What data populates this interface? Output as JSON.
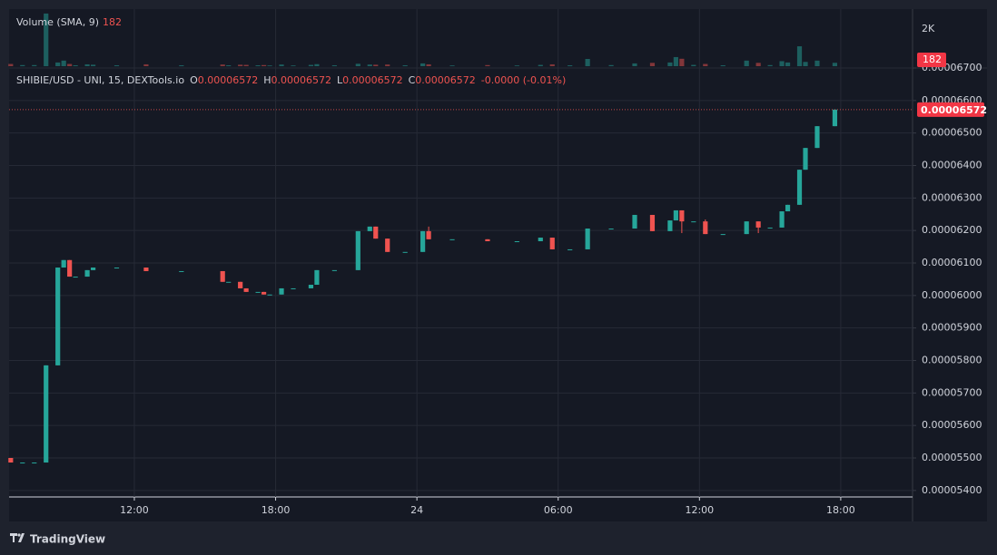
{
  "chart_data": {
    "type": "candlestick",
    "legend": {
      "title": "SHIBIE/USD - UNI, 15, DEXTools.io",
      "fields": [
        {
          "key": "O",
          "value": "0.00006572"
        },
        {
          "key": "H",
          "value": "0.00006572"
        },
        {
          "key": "L",
          "value": "0.00006572"
        },
        {
          "key": "C",
          "value": "0.00006572"
        }
      ],
      "change": "-0.0000 (-0.01%)"
    },
    "up_color": "#26a69a",
    "down_color": "#ef5350",
    "x": [
      6.75,
      7.25,
      7.75,
      8.25,
      8.75,
      9.0,
      9.25,
      9.5,
      10.0,
      10.25,
      11.25,
      12.5,
      14.0,
      15.75,
      16.0,
      16.5,
      16.75,
      17.25,
      17.5,
      17.75,
      18.25,
      18.75,
      19.5,
      19.75,
      20.5,
      21.5,
      22.0,
      22.25,
      22.75,
      23.5,
      24.25,
      24.5,
      25.5,
      27.0,
      28.25,
      29.25,
      29.75,
      30.5,
      31.25,
      32.25,
      33.25,
      34.0,
      34.75,
      35.0,
      35.25,
      35.75,
      36.25,
      37.0,
      38.0,
      38.5,
      39.0,
      39.5,
      39.75,
      40.25,
      40.5,
      41.0,
      41.75
    ],
    "open": [
      5.5e-05,
      5.486e-05,
      5.486e-05,
      5.486e-05,
      5.785e-05,
      6.086e-05,
      6.109e-05,
      6.058e-05,
      6.058e-05,
      6.078e-05,
      6.086e-05,
      6.086e-05,
      6.075e-05,
      6.075e-05,
      6.042e-05,
      6.042e-05,
      6.022e-05,
      6.011e-05,
      6.011e-05,
      6.003e-05,
      6.003e-05,
      6.022e-05,
      6.022e-05,
      6.033e-05,
      6.078e-05,
      6.078e-05,
      6.198e-05,
      6.212e-05,
      6.175e-05,
      6.134e-05,
      6.134e-05,
      6.198e-05,
      6.173e-05,
      6.173e-05,
      6.167e-05,
      6.167e-05,
      6.178e-05,
      6.142e-05,
      6.142e-05,
      6.206e-05,
      6.206e-05,
      6.248e-05,
      6.198e-05,
      6.231e-05,
      6.262e-05,
      6.228e-05,
      6.228e-05,
      6.189e-05,
      6.189e-05,
      6.228e-05,
      6.209e-05,
      6.209e-05,
      6.259e-05,
      6.279e-05,
      6.387e-05,
      6.454e-05,
      6.521e-05
    ],
    "high": [
      5.5e-05,
      5.486e-05,
      5.486e-05,
      5.785e-05,
      6.086e-05,
      6.109e-05,
      6.109e-05,
      6.058e-05,
      6.078e-05,
      6.086e-05,
      6.086e-05,
      6.086e-05,
      6.075e-05,
      6.075e-05,
      6.042e-05,
      6.042e-05,
      6.022e-05,
      6.011e-05,
      6.011e-05,
      6.003e-05,
      6.022e-05,
      6.022e-05,
      6.033e-05,
      6.078e-05,
      6.078e-05,
      6.198e-05,
      6.212e-05,
      6.212e-05,
      6.175e-05,
      6.134e-05,
      6.198e-05,
      6.212e-05,
      6.173e-05,
      6.173e-05,
      6.167e-05,
      6.178e-05,
      6.178e-05,
      6.142e-05,
      6.206e-05,
      6.206e-05,
      6.248e-05,
      6.248e-05,
      6.231e-05,
      6.262e-05,
      6.262e-05,
      6.228e-05,
      6.234e-05,
      6.189e-05,
      6.228e-05,
      6.228e-05,
      6.209e-05,
      6.259e-05,
      6.279e-05,
      6.387e-05,
      6.454e-05,
      6.521e-05,
      6.572e-05
    ],
    "low": [
      5.486e-05,
      5.486e-05,
      5.486e-05,
      5.486e-05,
      5.785e-05,
      6.086e-05,
      6.058e-05,
      6.058e-05,
      6.058e-05,
      6.078e-05,
      6.086e-05,
      6.075e-05,
      6.075e-05,
      6.042e-05,
      6.042e-05,
      6.022e-05,
      6.011e-05,
      6.011e-05,
      6.003e-05,
      6.003e-05,
      6.003e-05,
      6.022e-05,
      6.022e-05,
      6.033e-05,
      6.078e-05,
      6.078e-05,
      6.198e-05,
      6.175e-05,
      6.134e-05,
      6.134e-05,
      6.134e-05,
      6.173e-05,
      6.173e-05,
      6.167e-05,
      6.167e-05,
      6.167e-05,
      6.142e-05,
      6.142e-05,
      6.142e-05,
      6.206e-05,
      6.206e-05,
      6.198e-05,
      6.198e-05,
      6.231e-05,
      6.192e-05,
      6.228e-05,
      6.189e-05,
      6.189e-05,
      6.189e-05,
      6.192e-05,
      6.209e-05,
      6.209e-05,
      6.259e-05,
      6.279e-05,
      6.387e-05,
      6.454e-05,
      6.521e-05
    ],
    "close": [
      5.486e-05,
      5.486e-05,
      5.486e-05,
      5.785e-05,
      6.086e-05,
      6.109e-05,
      6.058e-05,
      6.058e-05,
      6.078e-05,
      6.086e-05,
      6.086e-05,
      6.075e-05,
      6.075e-05,
      6.042e-05,
      6.042e-05,
      6.022e-05,
      6.011e-05,
      6.011e-05,
      6.003e-05,
      6.003e-05,
      6.022e-05,
      6.022e-05,
      6.033e-05,
      6.078e-05,
      6.078e-05,
      6.198e-05,
      6.212e-05,
      6.175e-05,
      6.134e-05,
      6.134e-05,
      6.198e-05,
      6.173e-05,
      6.173e-05,
      6.167e-05,
      6.167e-05,
      6.178e-05,
      6.142e-05,
      6.142e-05,
      6.206e-05,
      6.206e-05,
      6.248e-05,
      6.198e-05,
      6.231e-05,
      6.262e-05,
      6.228e-05,
      6.228e-05,
      6.189e-05,
      6.189e-05,
      6.228e-05,
      6.209e-05,
      6.209e-05,
      6.259e-05,
      6.279e-05,
      6.387e-05,
      6.454e-05,
      6.521e-05,
      6.572e-05
    ],
    "volume": [
      120,
      60,
      60,
      2830,
      200,
      300,
      120,
      50,
      100,
      80,
      50,
      100,
      50,
      90,
      50,
      80,
      70,
      50,
      60,
      40,
      90,
      40,
      70,
      110,
      50,
      130,
      90,
      80,
      90,
      50,
      150,
      100,
      40,
      60,
      40,
      70,
      100,
      50,
      390,
      60,
      150,
      180,
      200,
      490,
      400,
      70,
      120,
      50,
      300,
      180,
      60,
      270,
      200,
      1070,
      230,
      300,
      182
    ],
    "xlim": [
      6.68,
      45.05
    ],
    "xticks": [
      {
        "value": 12,
        "label": "12:00"
      },
      {
        "value": 18,
        "label": "18:00"
      },
      {
        "value": 24,
        "label": "24"
      },
      {
        "value": 30,
        "label": "06:00"
      },
      {
        "value": 36,
        "label": "12:00"
      },
      {
        "value": 42,
        "label": "18:00"
      }
    ],
    "ylim": [
      5.38e-05,
      6.7e-05
    ],
    "yticks": [
      {
        "value": 5.4e-05,
        "label": "0.00005400"
      },
      {
        "value": 5.5e-05,
        "label": "0.00005500"
      },
      {
        "value": 5.6e-05,
        "label": "0.00005600"
      },
      {
        "value": 5.7e-05,
        "label": "0.00005700"
      },
      {
        "value": 5.8e-05,
        "label": "0.00005800"
      },
      {
        "value": 5.9e-05,
        "label": "0.00005900"
      },
      {
        "value": 6e-05,
        "label": "0.00006000"
      },
      {
        "value": 6.1e-05,
        "label": "0.00006100"
      },
      {
        "value": 6.2e-05,
        "label": "0.00006200"
      },
      {
        "value": 6.3e-05,
        "label": "0.00006300"
      },
      {
        "value": 6.4e-05,
        "label": "0.00006400"
      },
      {
        "value": 6.5e-05,
        "label": "0.00006500"
      },
      {
        "value": 6.6e-05,
        "label": "0.00006600"
      },
      {
        "value": 6.7e-05,
        "label": "0.00006700"
      }
    ],
    "grid": true,
    "volume_pane": {
      "title": "Volume (SMA, 9)",
      "last": 182,
      "ylim": [
        0,
        3070
      ],
      "yticks": [
        {
          "value": 2000,
          "label": "2K"
        }
      ]
    },
    "brand": "TradingView"
  }
}
